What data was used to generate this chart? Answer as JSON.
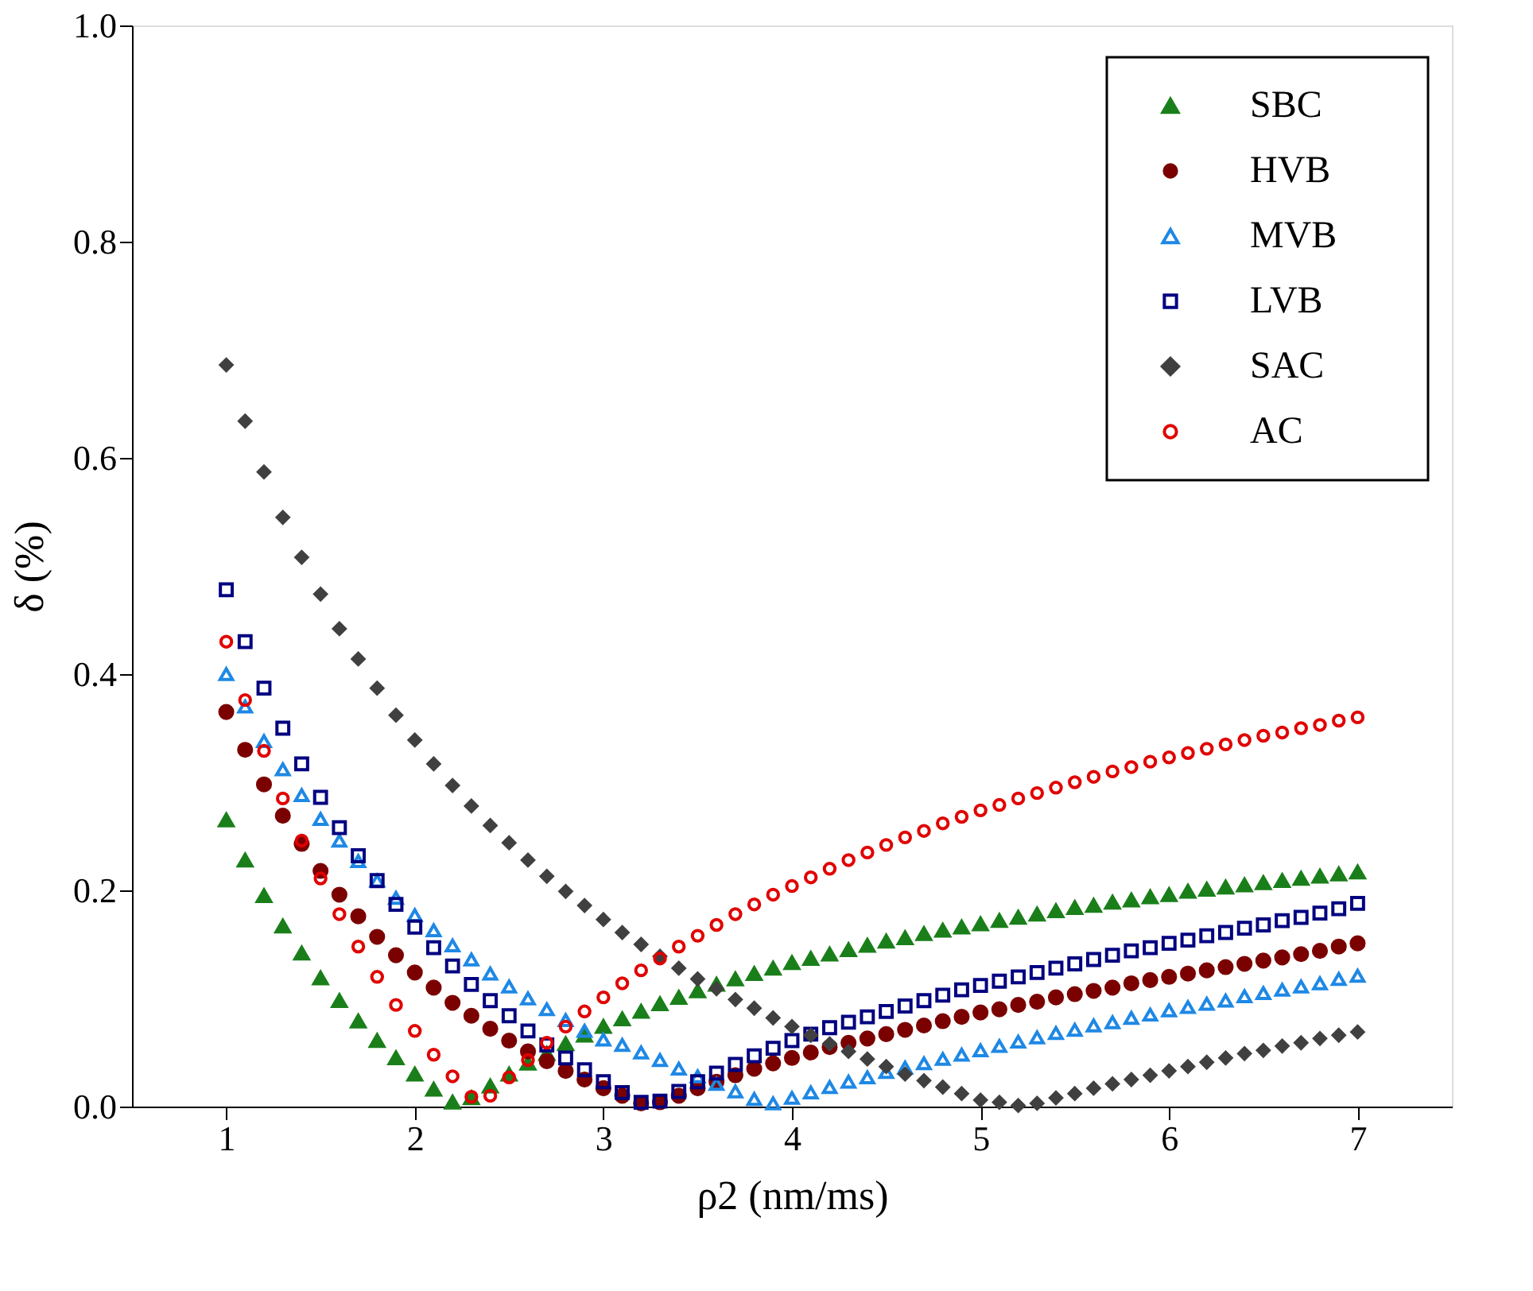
{
  "chart_data": {
    "type": "scatter",
    "xlabel": "ρ2 (nm/ms)",
    "ylabel": "δ (%)",
    "x": [
      1.0,
      1.1,
      1.2,
      1.3,
      1.4,
      1.5,
      1.6,
      1.7,
      1.8,
      1.9,
      2.0,
      2.1,
      2.2,
      2.3,
      2.4,
      2.5,
      2.6,
      2.7,
      2.8,
      2.9,
      3.0,
      3.1,
      3.2,
      3.3,
      3.4,
      3.5,
      3.6,
      3.7,
      3.8,
      3.9,
      4.0,
      4.1,
      4.2,
      4.3,
      4.4,
      4.5,
      4.6,
      4.7,
      4.8,
      4.9,
      5.0,
      5.1,
      5.2,
      5.3,
      5.4,
      5.5,
      5.6,
      5.7,
      5.8,
      5.9,
      6.0,
      6.1,
      6.2,
      6.3,
      6.4,
      6.5,
      6.6,
      6.7,
      6.8,
      6.9,
      7.0
    ],
    "xlim": [
      0.5,
      7.5
    ],
    "xticks": [
      1,
      2,
      3,
      4,
      5,
      6,
      7
    ],
    "ylim": [
      0,
      1
    ],
    "yticks": [
      {
        "value": 0,
        "label": "0.0"
      },
      {
        "value": 0.2,
        "label": "0.2"
      },
      {
        "value": 0.4,
        "label": "0.4"
      },
      {
        "value": 0.6,
        "label": "0.6"
      },
      {
        "value": 0.8,
        "label": "0.8"
      },
      {
        "value": 1,
        "label": "1.0"
      }
    ],
    "legend": "top right",
    "grid": false,
    "series": [
      {
        "name": "SBC",
        "color": "#1a7f1a",
        "marker": "triangle",
        "values": [
          0.265,
          0.228,
          0.195,
          0.167,
          0.142,
          0.119,
          0.098,
          0.079,
          0.061,
          0.045,
          0.03,
          0.016,
          0.004,
          0.008,
          0.019,
          0.03,
          0.04,
          0.049,
          0.058,
          0.066,
          0.074,
          0.081,
          0.088,
          0.095,
          0.101,
          0.107,
          0.113,
          0.118,
          0.123,
          0.128,
          0.133,
          0.137,
          0.141,
          0.145,
          0.149,
          0.153,
          0.156,
          0.16,
          0.163,
          0.166,
          0.169,
          0.172,
          0.175,
          0.178,
          0.181,
          0.184,
          0.186,
          0.189,
          0.191,
          0.194,
          0.196,
          0.199,
          0.201,
          0.203,
          0.205,
          0.207,
          0.209,
          0.211,
          0.213,
          0.215,
          0.217
        ]
      },
      {
        "name": "HVB",
        "color": "#7b0000",
        "marker": "circle",
        "values": [
          0.365,
          0.33,
          0.298,
          0.269,
          0.243,
          0.218,
          0.196,
          0.176,
          0.157,
          0.14,
          0.124,
          0.11,
          0.096,
          0.084,
          0.072,
          0.061,
          0.051,
          0.042,
          0.033,
          0.025,
          0.017,
          0.01,
          0.003,
          0.004,
          0.01,
          0.017,
          0.023,
          0.029,
          0.035,
          0.04,
          0.045,
          0.05,
          0.055,
          0.059,
          0.063,
          0.067,
          0.071,
          0.075,
          0.079,
          0.083,
          0.087,
          0.09,
          0.094,
          0.097,
          0.101,
          0.104,
          0.107,
          0.11,
          0.114,
          0.117,
          0.12,
          0.123,
          0.126,
          0.129,
          0.132,
          0.135,
          0.138,
          0.141,
          0.144,
          0.148,
          0.151
        ]
      },
      {
        "name": "MVB",
        "color": "#1e88e5",
        "marker": "triangle",
        "values": [
          0.4,
          0.37,
          0.338,
          0.312,
          0.288,
          0.266,
          0.246,
          0.227,
          0.209,
          0.193,
          0.177,
          0.163,
          0.149,
          0.136,
          0.123,
          0.111,
          0.1,
          0.09,
          0.08,
          0.07,
          0.062,
          0.057,
          0.05,
          0.043,
          0.035,
          0.028,
          0.021,
          0.014,
          0.007,
          0.003,
          0.008,
          0.013,
          0.018,
          0.023,
          0.027,
          0.032,
          0.036,
          0.04,
          0.044,
          0.048,
          0.052,
          0.056,
          0.06,
          0.064,
          0.068,
          0.071,
          0.075,
          0.078,
          0.082,
          0.085,
          0.089,
          0.092,
          0.095,
          0.098,
          0.102,
          0.105,
          0.108,
          0.111,
          0.114,
          0.118,
          0.121
        ]
      },
      {
        "name": "LVB",
        "color": "#000080",
        "marker": "square",
        "values": [
          0.478,
          0.43,
          0.387,
          0.35,
          0.317,
          0.286,
          0.258,
          0.232,
          0.209,
          0.187,
          0.166,
          0.147,
          0.13,
          0.113,
          0.098,
          0.084,
          0.07,
          0.057,
          0.045,
          0.034,
          0.023,
          0.013,
          0.004,
          0.005,
          0.014,
          0.023,
          0.031,
          0.039,
          0.047,
          0.054,
          0.061,
          0.067,
          0.073,
          0.078,
          0.083,
          0.088,
          0.093,
          0.098,
          0.103,
          0.108,
          0.112,
          0.116,
          0.12,
          0.124,
          0.128,
          0.132,
          0.136,
          0.14,
          0.144,
          0.147,
          0.151,
          0.154,
          0.158,
          0.161,
          0.165,
          0.168,
          0.172,
          0.175,
          0.179,
          0.183,
          0.188
        ]
      },
      {
        "name": "SAC",
        "color": "#404040",
        "marker": "diamond",
        "values": [
          0.686,
          0.634,
          0.587,
          0.545,
          0.508,
          0.474,
          0.442,
          0.414,
          0.387,
          0.362,
          0.339,
          0.317,
          0.297,
          0.278,
          0.26,
          0.244,
          0.228,
          0.213,
          0.199,
          0.186,
          0.173,
          0.161,
          0.15,
          0.139,
          0.128,
          0.118,
          0.109,
          0.099,
          0.091,
          0.082,
          0.074,
          0.066,
          0.058,
          0.051,
          0.044,
          0.037,
          0.03,
          0.024,
          0.018,
          0.012,
          0.006,
          0.004,
          0.001,
          0.003,
          0.008,
          0.012,
          0.017,
          0.021,
          0.025,
          0.029,
          0.033,
          0.037,
          0.041,
          0.045,
          0.049,
          0.052,
          0.056,
          0.059,
          0.063,
          0.066,
          0.069
        ]
      },
      {
        "name": "AC",
        "color": "#e00000",
        "marker": "circle",
        "values": [
          0.43,
          0.376,
          0.329,
          0.285,
          0.246,
          0.211,
          0.178,
          0.148,
          0.12,
          0.094,
          0.07,
          0.048,
          0.028,
          0.009,
          0.01,
          0.027,
          0.043,
          0.059,
          0.074,
          0.088,
          0.101,
          0.114,
          0.126,
          0.137,
          0.148,
          0.158,
          0.168,
          0.178,
          0.187,
          0.196,
          0.204,
          0.212,
          0.22,
          0.228,
          0.235,
          0.242,
          0.249,
          0.255,
          0.262,
          0.268,
          0.274,
          0.279,
          0.285,
          0.29,
          0.295,
          0.3,
          0.305,
          0.31,
          0.314,
          0.319,
          0.323,
          0.327,
          0.331,
          0.335,
          0.339,
          0.343,
          0.346,
          0.35,
          0.353,
          0.357,
          0.36
        ]
      }
    ]
  }
}
